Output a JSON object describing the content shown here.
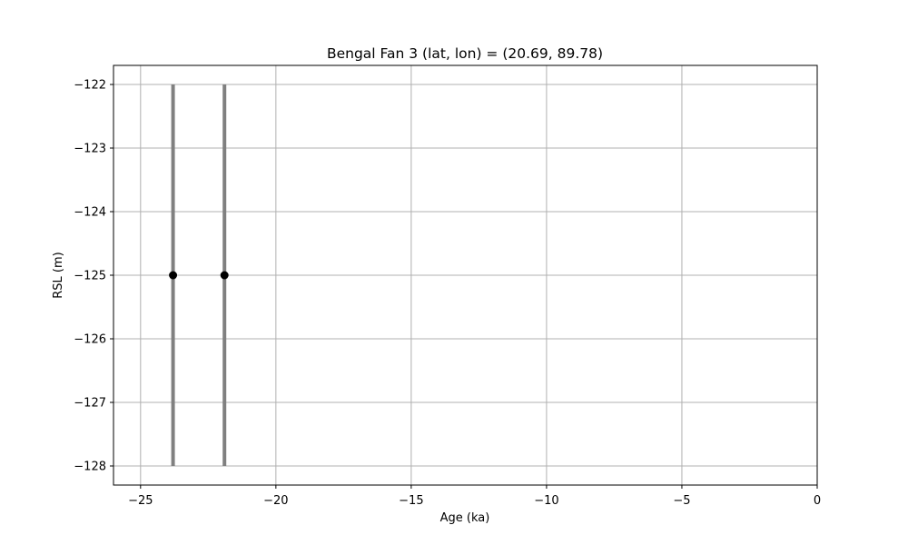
{
  "chart_data": {
    "type": "scatter",
    "title": "Bengal Fan 3 (lat, lon) = (20.69, 89.78)",
    "xlabel": "Age (ka)",
    "ylabel": "RSL (m)",
    "xlim": [
      -26,
      0
    ],
    "ylim": [
      -128.3,
      -121.7
    ],
    "xticks": [
      -25,
      -20,
      -15,
      -10,
      -5,
      0
    ],
    "xtick_labels": [
      "−25",
      "−20",
      "−15",
      "−10",
      "−5",
      "0"
    ],
    "yticks": [
      -122,
      -123,
      -124,
      -125,
      -126,
      -127,
      -128
    ],
    "ytick_labels": [
      "−122",
      "−123",
      "−124",
      "−125",
      "−126",
      "−127",
      "−128"
    ],
    "grid": true,
    "points": [
      {
        "x": -23.8,
        "y": -125,
        "ymin": -128,
        "ymax": -122
      },
      {
        "x": -21.9,
        "y": -125,
        "ymin": -128,
        "ymax": -122
      }
    ],
    "colors": {
      "marker": "#000000",
      "errorbar": "#808080",
      "grid": "#b0b0b0"
    }
  }
}
